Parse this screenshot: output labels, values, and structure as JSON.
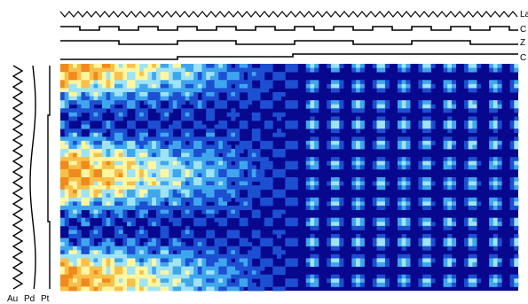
{
  "chart_data": {
    "type": "heatmap",
    "title": "",
    "top_tracks": [
      {
        "label": "La",
        "pattern": "zigzag"
      },
      {
        "label": "C",
        "pattern": "square-wave"
      },
      {
        "label": "Z",
        "pattern": "slow-square-wave"
      },
      {
        "label": "C",
        "pattern": "step"
      }
    ],
    "left_tracks": [
      {
        "label": "Au",
        "pattern": "zigzag"
      },
      {
        "label": "Pd",
        "pattern": "wave"
      },
      {
        "label": "Pt",
        "pattern": "steps"
      }
    ],
    "grid": {
      "rows": 56,
      "cols": 110
    },
    "colormap": [
      "#08088e",
      "#1c4fd1",
      "#3fa6ee",
      "#9fe3f5",
      "#fff6a0",
      "#f7c04a",
      "#f08a1c"
    ],
    "zones": [
      {
        "rows": "0-7",
        "cols": "0-26",
        "description": "mostly orange/high"
      },
      {
        "rows": "18-28",
        "cols": "0-55",
        "description": "alternating orange and blue blobs"
      },
      {
        "rows": "0-56",
        "cols": "55-110",
        "description": "dark blue with light dotted stripes"
      }
    ],
    "value_range": [
      0,
      1
    ]
  },
  "colors": {
    "background": "#ffffff",
    "low": "#08088e",
    "high": "#f08a1c"
  }
}
